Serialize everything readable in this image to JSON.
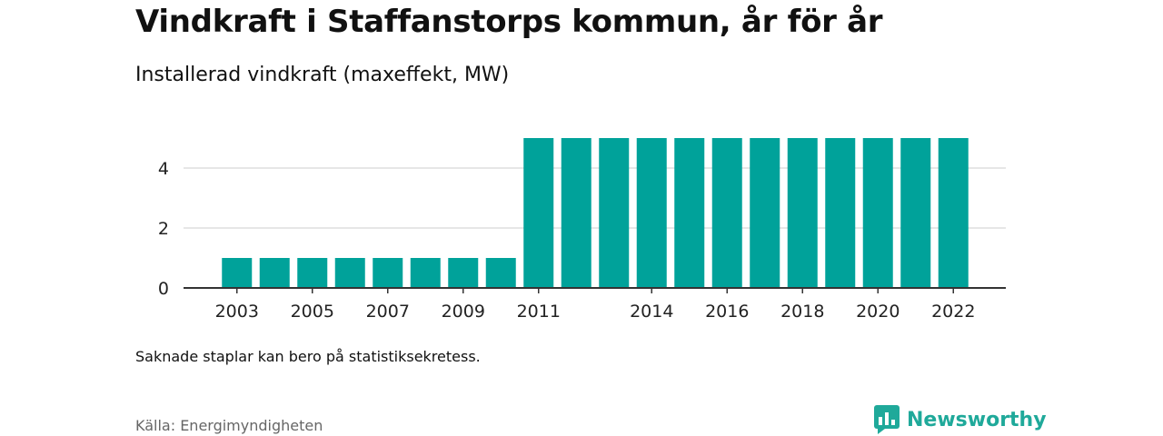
{
  "title": "Vindkraft i Staffanstorps kommun, år för år",
  "subtitle": "Installerad vindkraft (maxeffekt, MW)",
  "footnote": "Saknade staplar kan bero på statistiksekretess.",
  "source": "Källa: Energimyndigheten",
  "brand": {
    "name": "Newsworthy",
    "icon": "newsworthy-logo-icon",
    "color": "#1fa99a"
  },
  "chart_data": {
    "type": "bar",
    "categories": [
      "2003",
      "2004",
      "2005",
      "2006",
      "2007",
      "2008",
      "2009",
      "2010",
      "2011",
      "2012",
      "2013",
      "2014",
      "2015",
      "2016",
      "2017",
      "2018",
      "2019",
      "2020",
      "2021",
      "2022"
    ],
    "values": [
      1,
      1,
      1,
      1,
      1,
      1,
      1,
      1,
      5,
      5,
      5,
      5,
      5,
      5,
      5,
      5,
      5,
      5,
      5,
      5
    ],
    "x_tick_labels": [
      "2003",
      "2005",
      "2007",
      "2009",
      "2011",
      "2014",
      "2016",
      "2018",
      "2020",
      "2022"
    ],
    "y_ticks": [
      0,
      2,
      4
    ],
    "ylim": [
      0,
      5.5
    ],
    "grid": "horizontal",
    "bar_color": "#00a29a",
    "grid_color": "#dddddd",
    "axis_color": "#333333"
  }
}
